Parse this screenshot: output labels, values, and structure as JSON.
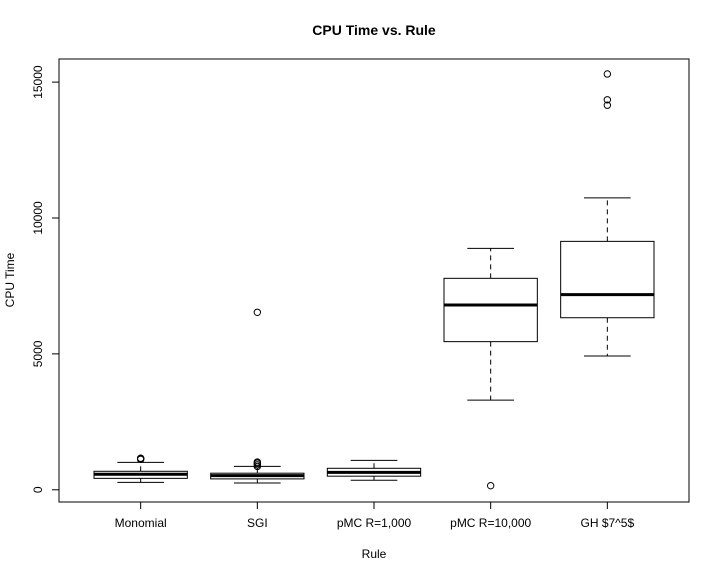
{
  "chart_data": {
    "type": "boxplot",
    "title": "CPU Time vs. Rule",
    "xlabel": "Rule",
    "ylabel": "CPU Time",
    "yticks": [
      0,
      5000,
      10000,
      15000
    ],
    "ylim": [
      -450,
      15850
    ],
    "grid": false,
    "legend": "none",
    "categories": [
      "Monomial",
      "SGI",
      "pMC R=1,000",
      "pMC R=10,000",
      "GH $7^5$"
    ],
    "boxes": [
      {
        "lower_whisker": 270,
        "q1": 420,
        "median": 570,
        "q3": 680,
        "upper_whisker": 1010,
        "outliers": [
          1120,
          1150,
          1160
        ]
      },
      {
        "lower_whisker": 250,
        "q1": 400,
        "median": 520,
        "q3": 610,
        "upper_whisker": 860,
        "outliers": [
          860,
          920,
          980,
          1020,
          6530
        ]
      },
      {
        "lower_whisker": 350,
        "q1": 500,
        "median": 640,
        "q3": 790,
        "upper_whisker": 1080,
        "outliers": []
      },
      {
        "lower_whisker": 3300,
        "q1": 5450,
        "median": 6800,
        "q3": 7780,
        "upper_whisker": 8880,
        "outliers": [
          150
        ]
      },
      {
        "lower_whisker": 4920,
        "q1": 6330,
        "median": 7180,
        "q3": 9140,
        "upper_whisker": 10740,
        "outliers": [
          14150,
          14350,
          15300
        ]
      }
    ]
  }
}
